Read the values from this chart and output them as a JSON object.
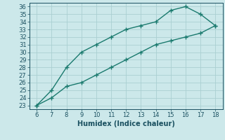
{
  "line1_x": [
    6,
    7,
    8,
    9,
    10,
    11,
    12,
    13,
    14,
    15,
    16,
    17,
    18
  ],
  "line1_y": [
    23,
    25,
    28,
    30,
    31,
    32,
    33,
    33.5,
    34,
    35.5,
    36,
    35,
    33.5
  ],
  "line2_x": [
    6,
    7,
    8,
    9,
    10,
    11,
    12,
    13,
    14,
    15,
    16,
    17,
    18
  ],
  "line2_y": [
    23,
    24,
    25.5,
    26,
    27,
    28,
    29,
    30,
    31,
    31.5,
    32,
    32.5,
    33.5
  ],
  "line_color": "#1a7a6e",
  "bg_color": "#cce8ea",
  "grid_color": "#aacfd2",
  "xlabel": "Humidex (Indice chaleur)",
  "xlim": [
    5.5,
    18.5
  ],
  "ylim": [
    22.5,
    36.5
  ],
  "xticks": [
    6,
    7,
    8,
    9,
    10,
    11,
    12,
    13,
    14,
    15,
    16,
    17,
    18
  ],
  "yticks": [
    23,
    24,
    25,
    26,
    27,
    28,
    29,
    30,
    31,
    32,
    33,
    34,
    35,
    36
  ],
  "marker": "+",
  "markersize": 4,
  "linewidth": 1.0,
  "font_color": "#1a5060",
  "xlabel_fontsize": 7,
  "tick_fontsize": 6
}
